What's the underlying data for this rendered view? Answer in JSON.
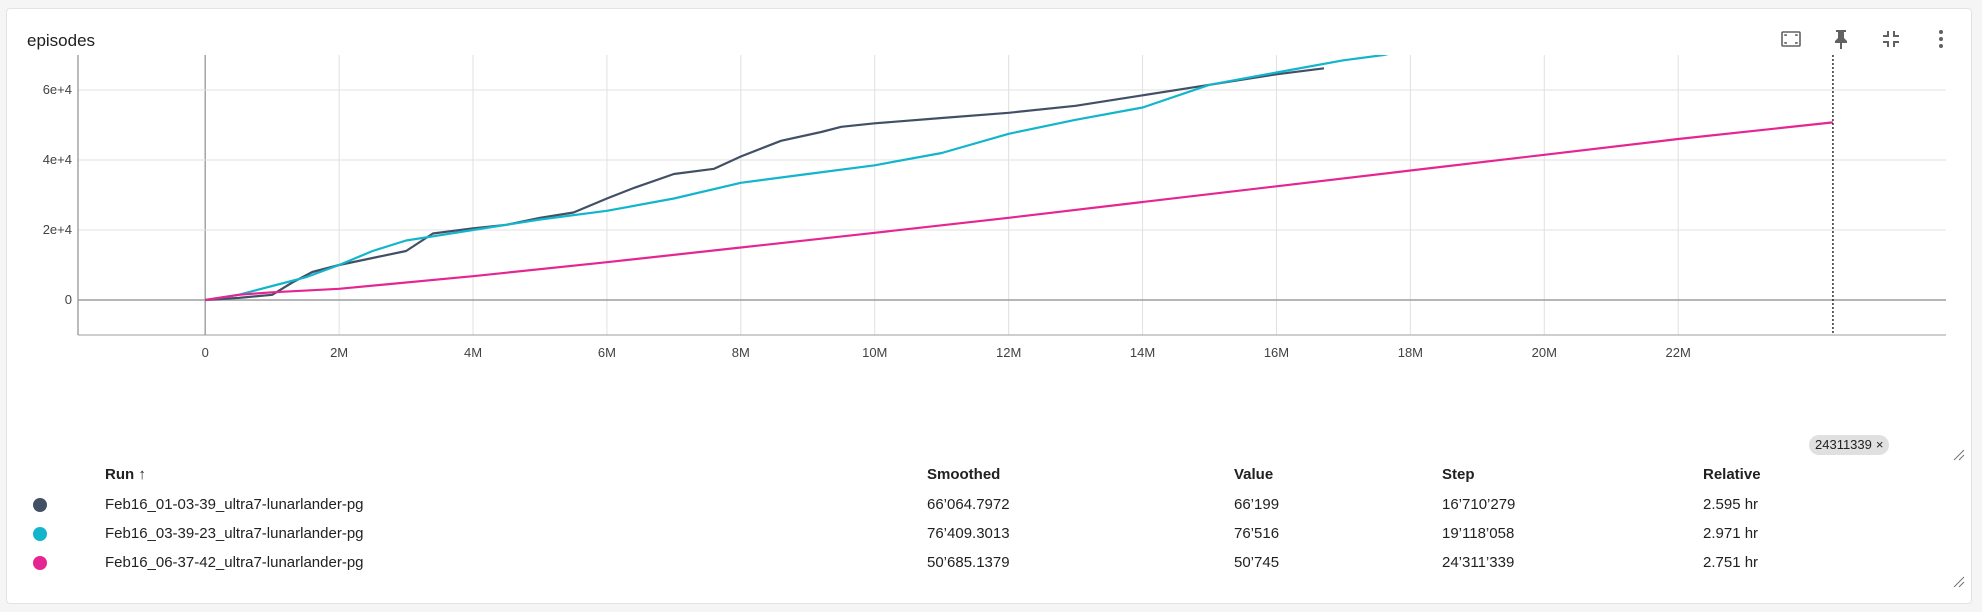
{
  "card": {
    "title": "episodes"
  },
  "toolbar": {
    "icons": [
      "fit-to-screen-icon",
      "pin-icon",
      "collapse-icon",
      "more-vert-icon"
    ]
  },
  "chart_data": {
    "type": "line",
    "title": "episodes",
    "xlabel": "",
    "ylabel": "",
    "xlim": [
      -1900000,
      26000000
    ],
    "ylim": [
      -10000,
      70000
    ],
    "x_ticks": [
      0,
      2000000,
      4000000,
      6000000,
      8000000,
      10000000,
      12000000,
      14000000,
      16000000,
      18000000,
      20000000,
      22000000
    ],
    "x_tick_labels": [
      "0",
      "2M",
      "4M",
      "6M",
      "8M",
      "10M",
      "12M",
      "14M",
      "16M",
      "18M",
      "20M",
      "22M"
    ],
    "y_ticks": [
      0,
      20000,
      40000,
      60000
    ],
    "y_tick_labels": [
      "0",
      "2e+4",
      "4e+4",
      "6e+4"
    ],
    "grid": true,
    "hover_step": 24311339,
    "hover_step_label": "24311339",
    "series": [
      {
        "name": "Feb16_01-03-39_ultra7-lunarlander-pg",
        "color": "#425066",
        "points": [
          [
            0,
            0
          ],
          [
            500000,
            600
          ],
          [
            1000000,
            1500
          ],
          [
            1300000,
            5000
          ],
          [
            1600000,
            8000
          ],
          [
            2000000,
            10000
          ],
          [
            2500000,
            12000
          ],
          [
            3000000,
            14000
          ],
          [
            3400000,
            19000
          ],
          [
            4000000,
            20500
          ],
          [
            4500000,
            21500
          ],
          [
            5000000,
            23500
          ],
          [
            5500000,
            25000
          ],
          [
            6000000,
            29000
          ],
          [
            6400000,
            32000
          ],
          [
            7000000,
            36000
          ],
          [
            7600000,
            37500
          ],
          [
            8000000,
            41000
          ],
          [
            8600000,
            45500
          ],
          [
            9200000,
            48000
          ],
          [
            9500000,
            49500
          ],
          [
            10000000,
            50500
          ],
          [
            11000000,
            52000
          ],
          [
            12000000,
            53500
          ],
          [
            13000000,
            55500
          ],
          [
            14000000,
            58500
          ],
          [
            15000000,
            61500
          ],
          [
            16000000,
            64500
          ],
          [
            16710279,
            66199
          ]
        ]
      },
      {
        "name": "Feb16_03-39-23_ultra7-lunarlander-pg",
        "color": "#12b5cb",
        "points": [
          [
            0,
            0
          ],
          [
            500000,
            1500
          ],
          [
            1000000,
            4000
          ],
          [
            1500000,
            6500
          ],
          [
            2000000,
            10000
          ],
          [
            2500000,
            14000
          ],
          [
            3000000,
            17000
          ],
          [
            3500000,
            18500
          ],
          [
            4000000,
            20000
          ],
          [
            5000000,
            23000
          ],
          [
            6000000,
            25500
          ],
          [
            7000000,
            29000
          ],
          [
            8000000,
            33500
          ],
          [
            9000000,
            36000
          ],
          [
            10000000,
            38500
          ],
          [
            11000000,
            42000
          ],
          [
            12000000,
            47500
          ],
          [
            13000000,
            51500
          ],
          [
            14000000,
            55000
          ],
          [
            15000000,
            61500
          ],
          [
            16000000,
            65000
          ],
          [
            17000000,
            68500
          ],
          [
            17600000,
            70000
          ],
          [
            19118058,
            76516
          ]
        ]
      },
      {
        "name": "Feb16_06-37-42_ultra7-lunarlander-pg",
        "color": "#e52592",
        "points": [
          [
            0,
            0
          ],
          [
            500000,
            1500
          ],
          [
            1000000,
            2200
          ],
          [
            2000000,
            3200
          ],
          [
            4000000,
            6800
          ],
          [
            6000000,
            10800
          ],
          [
            8000000,
            15000
          ],
          [
            10000000,
            19200
          ],
          [
            12000000,
            23500
          ],
          [
            14000000,
            28000
          ],
          [
            16000000,
            32500
          ],
          [
            18000000,
            37000
          ],
          [
            20000000,
            41500
          ],
          [
            22000000,
            46000
          ],
          [
            24311339,
            50745
          ]
        ]
      }
    ]
  },
  "table": {
    "headers": {
      "run": "Run ↑",
      "smoothed": "Smoothed",
      "value": "Value",
      "step": "Step",
      "relative": "Relative"
    },
    "rows": [
      {
        "color": "#425066",
        "run": "Feb16_01-03-39_ultra7-lunarlander-pg",
        "smoothed": "66’064.7972",
        "value": "66’199",
        "step": "16’710’279",
        "relative": "2.595 hr"
      },
      {
        "color": "#12b5cb",
        "run": "Feb16_03-39-23_ultra7-lunarlander-pg",
        "smoothed": "76’409.3013",
        "value": "76’516",
        "step": "19’118’058",
        "relative": "2.971 hr"
      },
      {
        "color": "#e52592",
        "run": "Feb16_06-37-42_ultra7-lunarlander-pg",
        "smoothed": "50’685.1379",
        "value": "50’745",
        "step": "24’311’339",
        "relative": "2.751 hr"
      }
    ]
  }
}
